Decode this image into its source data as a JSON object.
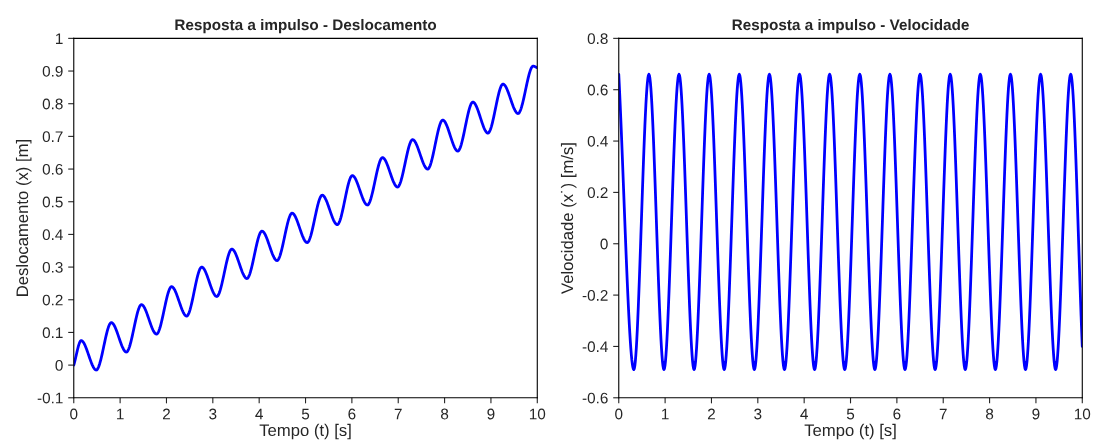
{
  "chart_data": [
    {
      "type": "line",
      "title": "Resposta a impulso - Deslocamento",
      "xlabel": "Tempo (t) [s]",
      "ylabel": "Deslocamento (x) [m]",
      "xlim": [
        0,
        10
      ],
      "ylim": [
        -0.1,
        1
      ],
      "xticks": [
        0,
        1,
        2,
        3,
        4,
        5,
        6,
        7,
        8,
        9,
        10
      ],
      "yticks": [
        -0.1,
        0,
        0.1,
        0.2,
        0.3,
        0.4,
        0.5,
        0.6,
        0.7,
        0.8,
        0.9,
        1
      ],
      "grid": false,
      "legend": false,
      "x": [
        0,
        0.16,
        0.485,
        0.81,
        1.135,
        1.46,
        1.785,
        2.11,
        2.435,
        2.76,
        3.085,
        3.41,
        3.735,
        4.06,
        4.385,
        4.71,
        5.035,
        5.36,
        5.685,
        6.01,
        6.335,
        6.66,
        6.985,
        7.31,
        7.635,
        7.96,
        8.285,
        8.61,
        8.935,
        9.26,
        9.585,
        9.91,
        10
      ],
      "series": [
        {
          "color": "#0000ff",
          "values": [
            0,
            0.075,
            -0.015,
            0.13,
            0.04,
            0.185,
            0.095,
            0.24,
            0.15,
            0.3,
            0.21,
            0.355,
            0.265,
            0.41,
            0.32,
            0.465,
            0.375,
            0.52,
            0.43,
            0.58,
            0.49,
            0.635,
            0.545,
            0.69,
            0.6,
            0.75,
            0.655,
            0.805,
            0.71,
            0.86,
            0.77,
            0.915,
            0.91
          ]
        }
      ]
    },
    {
      "type": "line",
      "title": "Resposta a impulso - Velocidade",
      "xlabel": "Tempo (t) [s]",
      "ylabel": "Velocidade (x˙) [m/s]",
      "xlim": [
        0,
        10
      ],
      "ylim": [
        -0.6,
        0.8
      ],
      "xticks": [
        0,
        1,
        2,
        3,
        4,
        5,
        6,
        7,
        8,
        9,
        10
      ],
      "yticks": [
        -0.6,
        -0.4,
        -0.2,
        0,
        0.2,
        0.4,
        0.6,
        0.8
      ],
      "grid": false,
      "legend": false,
      "x": [
        0,
        0.325,
        0.65,
        0.975,
        1.3,
        1.625,
        1.95,
        2.275,
        2.6,
        2.925,
        3.25,
        3.575,
        3.9,
        4.225,
        4.55,
        4.875,
        5.2,
        5.525,
        5.85,
        6.175,
        6.5,
        6.825,
        7.15,
        7.475,
        7.8,
        8.125,
        8.45,
        8.775,
        9.1,
        9.425,
        9.75,
        10
      ],
      "series": [
        {
          "color": "#0000ff",
          "values": [
            0.66,
            -0.49,
            0.66,
            -0.49,
            0.66,
            -0.49,
            0.66,
            -0.49,
            0.66,
            -0.49,
            0.66,
            -0.49,
            0.66,
            -0.49,
            0.66,
            -0.49,
            0.66,
            -0.49,
            0.66,
            -0.49,
            0.66,
            -0.49,
            0.66,
            -0.49,
            0.66,
            -0.49,
            0.66,
            -0.49,
            0.66,
            -0.49,
            0.66,
            -0.4
          ]
        }
      ]
    }
  ]
}
